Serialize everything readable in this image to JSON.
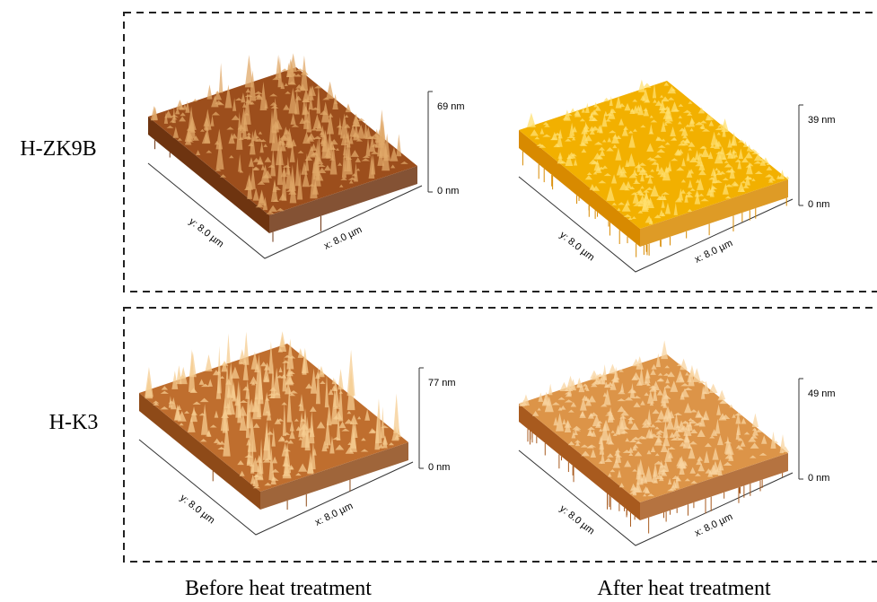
{
  "rows": [
    {
      "label": "H-ZK9B",
      "panels": [
        {
          "z_max": "69 nm",
          "z_min": "0 nm",
          "y_axis": "y: 8.0 µm",
          "x_axis": "x: 8.0 µm"
        },
        {
          "z_max": "39 nm",
          "z_min": "0 nm",
          "y_axis": "y: 8.0 µm",
          "x_axis": "x: 8.0 µm"
        }
      ]
    },
    {
      "label": "H-K3",
      "panels": [
        {
          "z_max": "77 nm",
          "z_min": "0 nm",
          "y_axis": "y: 8.0 µm",
          "x_axis": "x: 8.0 µm"
        },
        {
          "z_max": "49 nm",
          "z_min": "0 nm",
          "y_axis": "y: 8.0 µm",
          "x_axis": "x: 8.0 µm"
        }
      ]
    }
  ],
  "columns": [
    "Before heat treatment",
    "After heat treatment"
  ]
}
